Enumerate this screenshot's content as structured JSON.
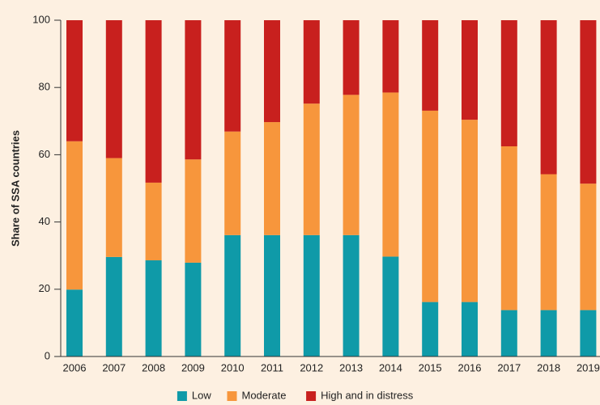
{
  "chart_data": {
    "type": "stacked_bar",
    "y_label": "Share of SSA countries",
    "categories": [
      "2006",
      "2007",
      "2008",
      "2009",
      "2010",
      "2011",
      "2012",
      "2013",
      "2014",
      "2015",
      "2016",
      "2017",
      "2018",
      "2019"
    ],
    "series": [
      {
        "name": "Low",
        "color": "#0f9aa8",
        "values": [
          19.9,
          29.6,
          28.6,
          27.9,
          36.1,
          36.1,
          36.1,
          36.1,
          29.7,
          16.2,
          16.2,
          13.8,
          13.8,
          13.8
        ]
      },
      {
        "name": "Moderate",
        "color": "#f7963c",
        "values": [
          44.1,
          29.4,
          23.1,
          30.7,
          30.8,
          33.6,
          39.1,
          41.7,
          48.8,
          56.9,
          54.2,
          48.7,
          40.4,
          37.6
        ]
      },
      {
        "name": "High and in distress",
        "color": "#c8201e",
        "values": [
          36.0,
          41.0,
          48.3,
          41.4,
          33.1,
          30.3,
          24.8,
          22.2,
          21.5,
          26.9,
          29.6,
          37.5,
          45.8,
          48.6
        ]
      }
    ],
    "ylim": [
      0,
      100
    ],
    "yticks": [
      0,
      20,
      40,
      60,
      80,
      100
    ],
    "legend": "bottom"
  }
}
